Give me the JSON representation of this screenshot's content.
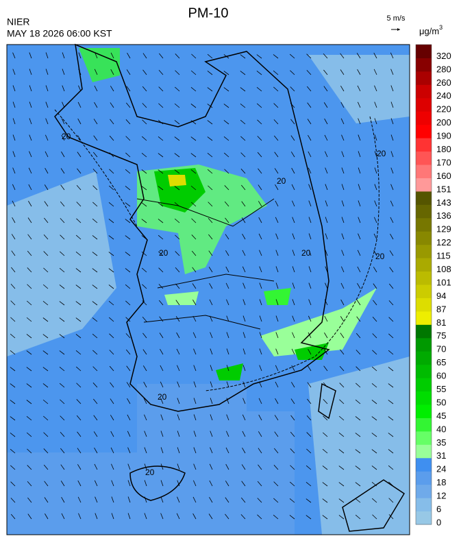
{
  "header": {
    "title": "PM-10",
    "agency": "NIER",
    "datetime": "MAY 18 2026 06:00 KST",
    "wind_scale": "5 m/s",
    "unit": "μg/m",
    "unit_power": "3"
  },
  "map": {
    "contour_label": "20"
  },
  "colorbar": {
    "levels": [
      0,
      6,
      12,
      18,
      24,
      31,
      35,
      40,
      45,
      50,
      55,
      60,
      65,
      70,
      75,
      81,
      87,
      94,
      101,
      108,
      115,
      122,
      129,
      136,
      143,
      151,
      160,
      170,
      180,
      190,
      200,
      220,
      240,
      260,
      280,
      320
    ],
    "colors": [
      "#97c8e6",
      "#86bde9",
      "#6faaea",
      "#5b9dec",
      "#3f8ff0",
      "#99ff99",
      "#66ff66",
      "#33f533",
      "#00ee00",
      "#00dd00",
      "#00cc00",
      "#00bb00",
      "#00aa00",
      "#009900",
      "#007700",
      "#eeee00",
      "#dddd00",
      "#cccc00",
      "#bbbb00",
      "#aaaa00",
      "#999900",
      "#888800",
      "#777700",
      "#666600",
      "#555500",
      "#ff9999",
      "#ff7777",
      "#ff5555",
      "#ff3333",
      "#ff0000",
      "#ee0000",
      "#dd0000",
      "#cc0000",
      "#aa0000",
      "#880000",
      "#660000"
    ]
  }
}
